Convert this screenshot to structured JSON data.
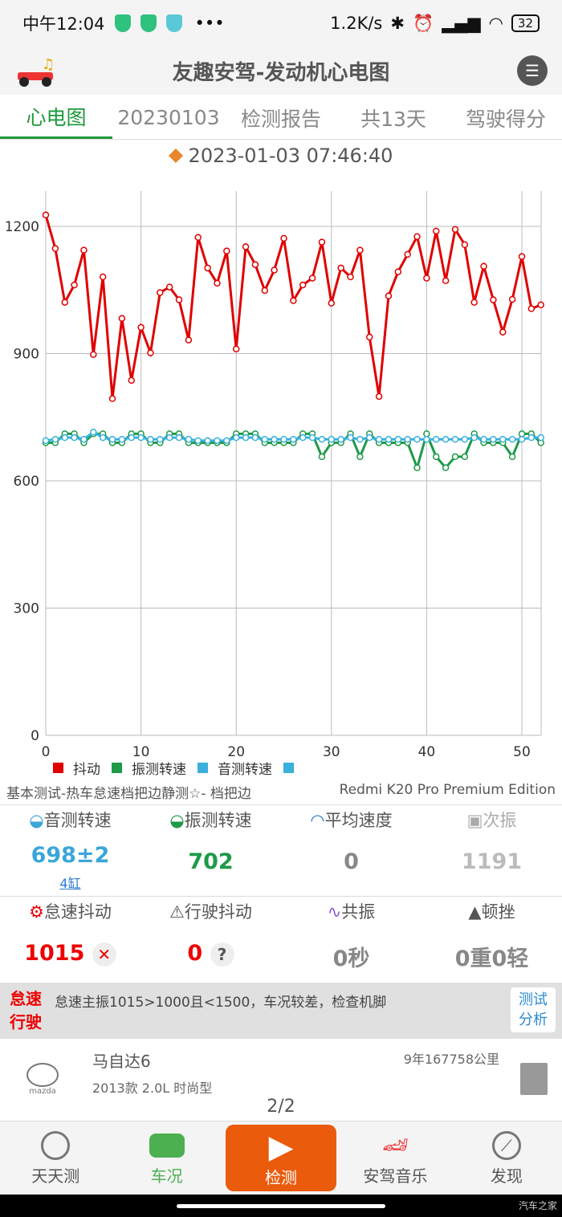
{
  "status_bar": {
    "time": "中午12:04",
    "net_speed": "1.2K/s",
    "battery": "32"
  },
  "app": {
    "title": "友趣安驾-发动机心电图"
  },
  "tabs": [
    "心电图",
    "20230103",
    "检测报告",
    "共13天",
    "驾驶得分"
  ],
  "datetime": "2023-01-03 07:46:40",
  "chart_data": {
    "type": "line",
    "x": [
      0,
      1,
      2,
      3,
      4,
      5,
      6,
      7,
      8,
      9,
      10,
      11,
      12,
      13,
      14,
      15,
      16,
      17,
      18,
      19,
      20,
      21,
      22,
      23,
      24,
      25,
      26,
      27,
      28,
      29,
      30,
      31,
      32,
      33,
      34,
      35,
      36,
      37,
      38,
      39,
      40,
      41,
      42,
      43,
      44,
      45,
      46,
      47,
      48,
      49,
      50,
      51,
      52
    ],
    "series": [
      {
        "name": "抖动",
        "color": "#e00000",
        "values": [
          1227,
          1148,
          1021,
          1062,
          1144,
          898,
          1081,
          794,
          983,
          837,
          962,
          902,
          1044,
          1057,
          1027,
          932,
          1174,
          1102,
          1066,
          1142,
          911,
          1152,
          1110,
          1049,
          1097,
          1172,
          1025,
          1062,
          1078,
          1163,
          1019,
          1102,
          1081,
          1144,
          939,
          799,
          1036,
          1093,
          1134,
          1176,
          1078,
          1189,
          1072,
          1193,
          1157,
          1021,
          1106,
          1027,
          951,
          1028,
          1129,
          1006,
          1015
        ]
      },
      {
        "name": "振测转速",
        "color": "#1e9a48",
        "values": [
          690,
          690,
          711,
          711,
          690,
          711,
          711,
          690,
          690,
          711,
          711,
          690,
          690,
          711,
          711,
          690,
          690,
          690,
          690,
          690,
          711,
          711,
          711,
          690,
          690,
          690,
          690,
          711,
          711,
          657,
          690,
          690,
          711,
          657,
          711,
          690,
          690,
          690,
          690,
          631,
          711,
          657,
          631,
          657,
          657,
          711,
          690,
          690,
          690,
          657,
          711,
          711,
          690
        ]
      },
      {
        "name": "音测转速",
        "color": "#3ab0dc",
        "values": [
          695,
          698,
          702,
          702,
          698,
          715,
          702,
          698,
          698,
          702,
          702,
          698,
          698,
          702,
          702,
          698,
          695,
          695,
          695,
          695,
          702,
          702,
          702,
          698,
          698,
          698,
          698,
          702,
          702,
          698,
          698,
          698,
          702,
          698,
          702,
          698,
          698,
          698,
          698,
          698,
          698,
          698,
          698,
          698,
          698,
          702,
          698,
          698,
          698,
          698,
          698,
          702,
          702
        ]
      }
    ],
    "legend_extra": "",
    "xlim": [
      0,
      52
    ],
    "ylim": [
      0,
      1300
    ],
    "xticks": [
      "0",
      "10",
      "20",
      "30",
      "40",
      "50"
    ],
    "yticks": [
      "0",
      "300",
      "600",
      "900",
      "1200"
    ],
    "grid": true,
    "legend": "bottom-left"
  },
  "test_info": {
    "left": "基本测试-热车怠速档把边静测☆- 档把边",
    "right": "Redmi K20 Pro Premium Edition"
  },
  "metrics1": [
    {
      "label": "音测转速",
      "value": "698±2",
      "sub": "4缸",
      "color": "#3aa6d8"
    },
    {
      "label": "振测转速",
      "value": "702",
      "color": "#1e9a48"
    },
    {
      "label": "平均速度",
      "value": "0",
      "color": "#888"
    },
    {
      "label": "次振",
      "value": "1191",
      "color": "#bbb"
    }
  ],
  "metrics2": [
    {
      "label": "怠速抖动",
      "value": "1015",
      "color": "#e00"
    },
    {
      "label": "行驶抖动",
      "value": "0",
      "color": "#e00"
    },
    {
      "label": "共振",
      "value": "0秒",
      "color": "#888"
    },
    {
      "label": "顿挫",
      "value": "0重0轻",
      "color": "#888"
    }
  ],
  "alert": {
    "tag1": "怠速",
    "tag2": "行驶",
    "message": "怠速主振1015>1000且<1500，车况较差，检查机脚",
    "button1": "测试",
    "button2": "分析"
  },
  "car": {
    "name": "马自达6",
    "model": "2013款 2.0L 时尚型",
    "usage": "9年167758公里",
    "brand": "mazda",
    "page": "2/2"
  },
  "nav": [
    "天天测",
    "车况",
    "检测",
    "安驾音乐",
    "发现"
  ],
  "watermark": "汽车之家"
}
